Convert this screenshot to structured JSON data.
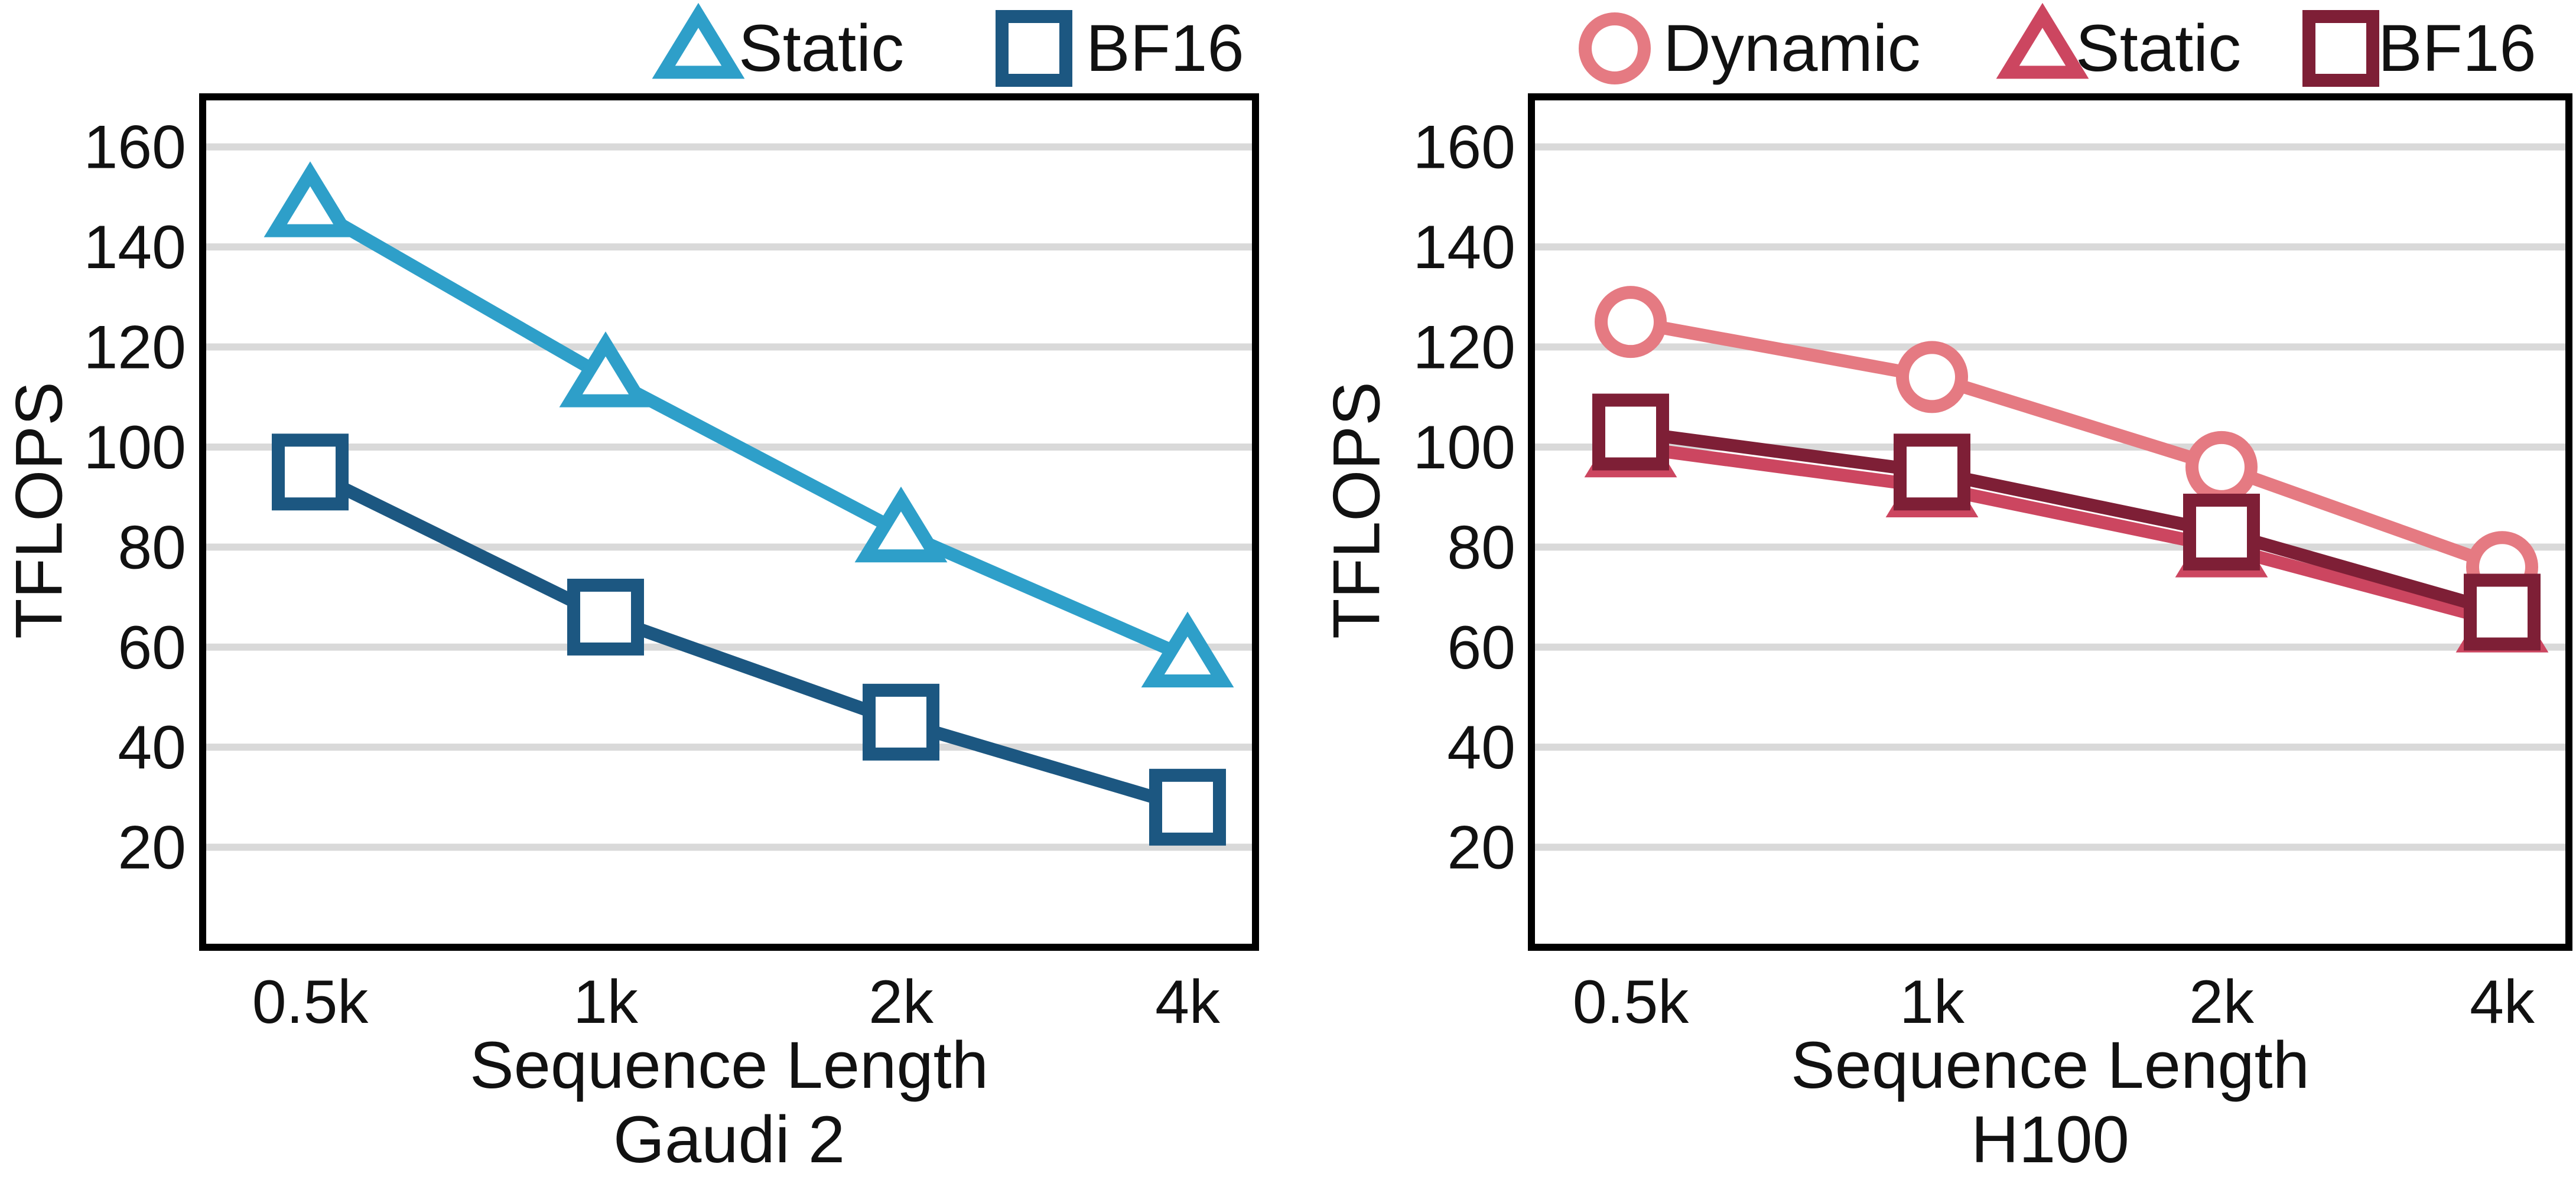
{
  "chart_data": [
    {
      "type": "line",
      "caption": "Gaudi 2",
      "xlabel": "Sequence Length",
      "ylabel": "TFLOPS",
      "categories": [
        "0.5k",
        "1k",
        "2k",
        "4k"
      ],
      "ylim": [
        0,
        170
      ],
      "yticks": [
        20,
        40,
        60,
        80,
        100,
        120,
        140,
        160
      ],
      "grid": "horizontal",
      "legend_position": "top",
      "series": [
        {
          "name": "Static",
          "marker": "triangle",
          "color": "#2e9fc9",
          "values": [
            148,
            114,
            83,
            58
          ]
        },
        {
          "name": "BF16",
          "marker": "square",
          "color": "#1c5781",
          "values": [
            95,
            66,
            45,
            28
          ]
        }
      ]
    },
    {
      "type": "line",
      "caption": "H100",
      "xlabel": "Sequence Length",
      "ylabel": "TFLOPS",
      "categories": [
        "0.5k",
        "1k",
        "2k",
        "4k"
      ],
      "ylim": [
        0,
        170
      ],
      "yticks": [
        20,
        40,
        60,
        80,
        100,
        120,
        140,
        160
      ],
      "grid": "horizontal",
      "legend_position": "top",
      "series": [
        {
          "name": "Dynamic",
          "marker": "circle",
          "color": "#e57a82",
          "values": [
            125,
            114,
            96,
            76
          ]
        },
        {
          "name": "Static",
          "marker": "triangle",
          "color": "#cc4660",
          "values": [
            100,
            92,
            80,
            65
          ]
        },
        {
          "name": "BF16",
          "marker": "square",
          "color": "#7e1f36",
          "values": [
            103,
            95,
            83,
            67
          ]
        }
      ]
    }
  ]
}
